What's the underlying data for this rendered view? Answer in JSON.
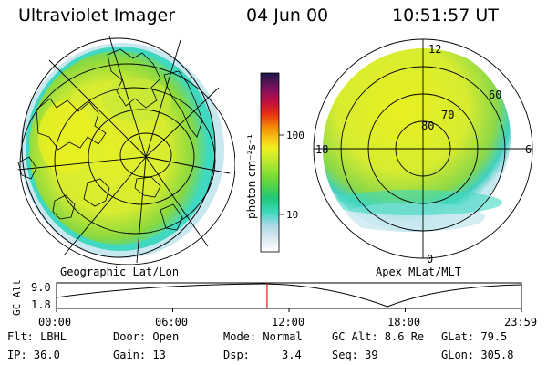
{
  "header": {
    "instrument": "Ultraviolet Imager",
    "date": "04 Jun 00",
    "time": "10:51:57 UT"
  },
  "left_panel": {
    "caption": "Geographic Lat/Lon"
  },
  "right_panel": {
    "caption": "Apex MLat/MLT",
    "lat_labels": [
      "80",
      "70",
      "60"
    ],
    "mlt_labels": {
      "top": "12",
      "left": "18",
      "right": "6",
      "bottom": "0"
    }
  },
  "colorbar": {
    "unit_label": "photon cm⁻²s⁻¹",
    "ticks": [
      "100",
      "10"
    ]
  },
  "timeline": {
    "ylabel": "GC Alt",
    "y_ticks": [
      "9.0",
      "1.8"
    ],
    "x_ticks": [
      "00:00",
      "06:00",
      "12:00",
      "18:00",
      "23:59"
    ],
    "marker_time_fraction": 0.4528
  },
  "info": {
    "flt": "Flt: LBHL",
    "ip": "IP: 36.0",
    "door": "Door: Open",
    "gain": "Gain: 13",
    "mode": "Mode: Normal",
    "dsp_label": "Dsp:",
    "dsp_value": "3.4",
    "gc_alt": "GC Alt: 8.6 Re",
    "seq": "Seq: 39",
    "glat": "GLat: 79.5",
    "glon": "GLon: 305.8"
  },
  "colors": {
    "aurora_low": "#c8e8f0",
    "aurora_mid": "#40d8c0",
    "aurora_green": "#7cd84a",
    "aurora_yellow": "#e8f020",
    "marker": "#d02010"
  }
}
